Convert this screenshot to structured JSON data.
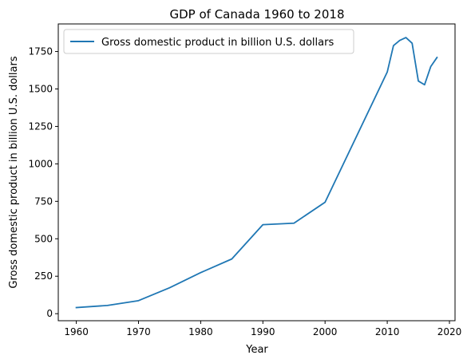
{
  "chart_data": {
    "type": "line",
    "title": "GDP of Canada 1960 to 2018",
    "xlabel": "Year",
    "ylabel": "Gross domestic product in billion U.S. dollars",
    "xlim": [
      1957.1,
      2020.9
    ],
    "ylim": [
      -47,
      1934
    ],
    "xticks": [
      1960,
      1970,
      1980,
      1990,
      2000,
      2010,
      2020
    ],
    "yticks": [
      0,
      250,
      500,
      750,
      1000,
      1250,
      1500,
      1750
    ],
    "grid": false,
    "legend_position": "top-left",
    "series": [
      {
        "name": "Gross domestic product in billion U.S. dollars",
        "color": "#1f77b4",
        "x": [
          1960,
          1965,
          1970,
          1975,
          1980,
          1985,
          1990,
          1995,
          2000,
          2010,
          2011,
          2012,
          2013,
          2014,
          2015,
          2016,
          2017,
          2018
        ],
        "y": [
          41,
          55,
          87,
          173,
          274,
          365,
          594,
          604,
          744,
          1613,
          1789,
          1824,
          1843,
          1805,
          1553,
          1528,
          1650,
          1710
        ]
      }
    ]
  }
}
